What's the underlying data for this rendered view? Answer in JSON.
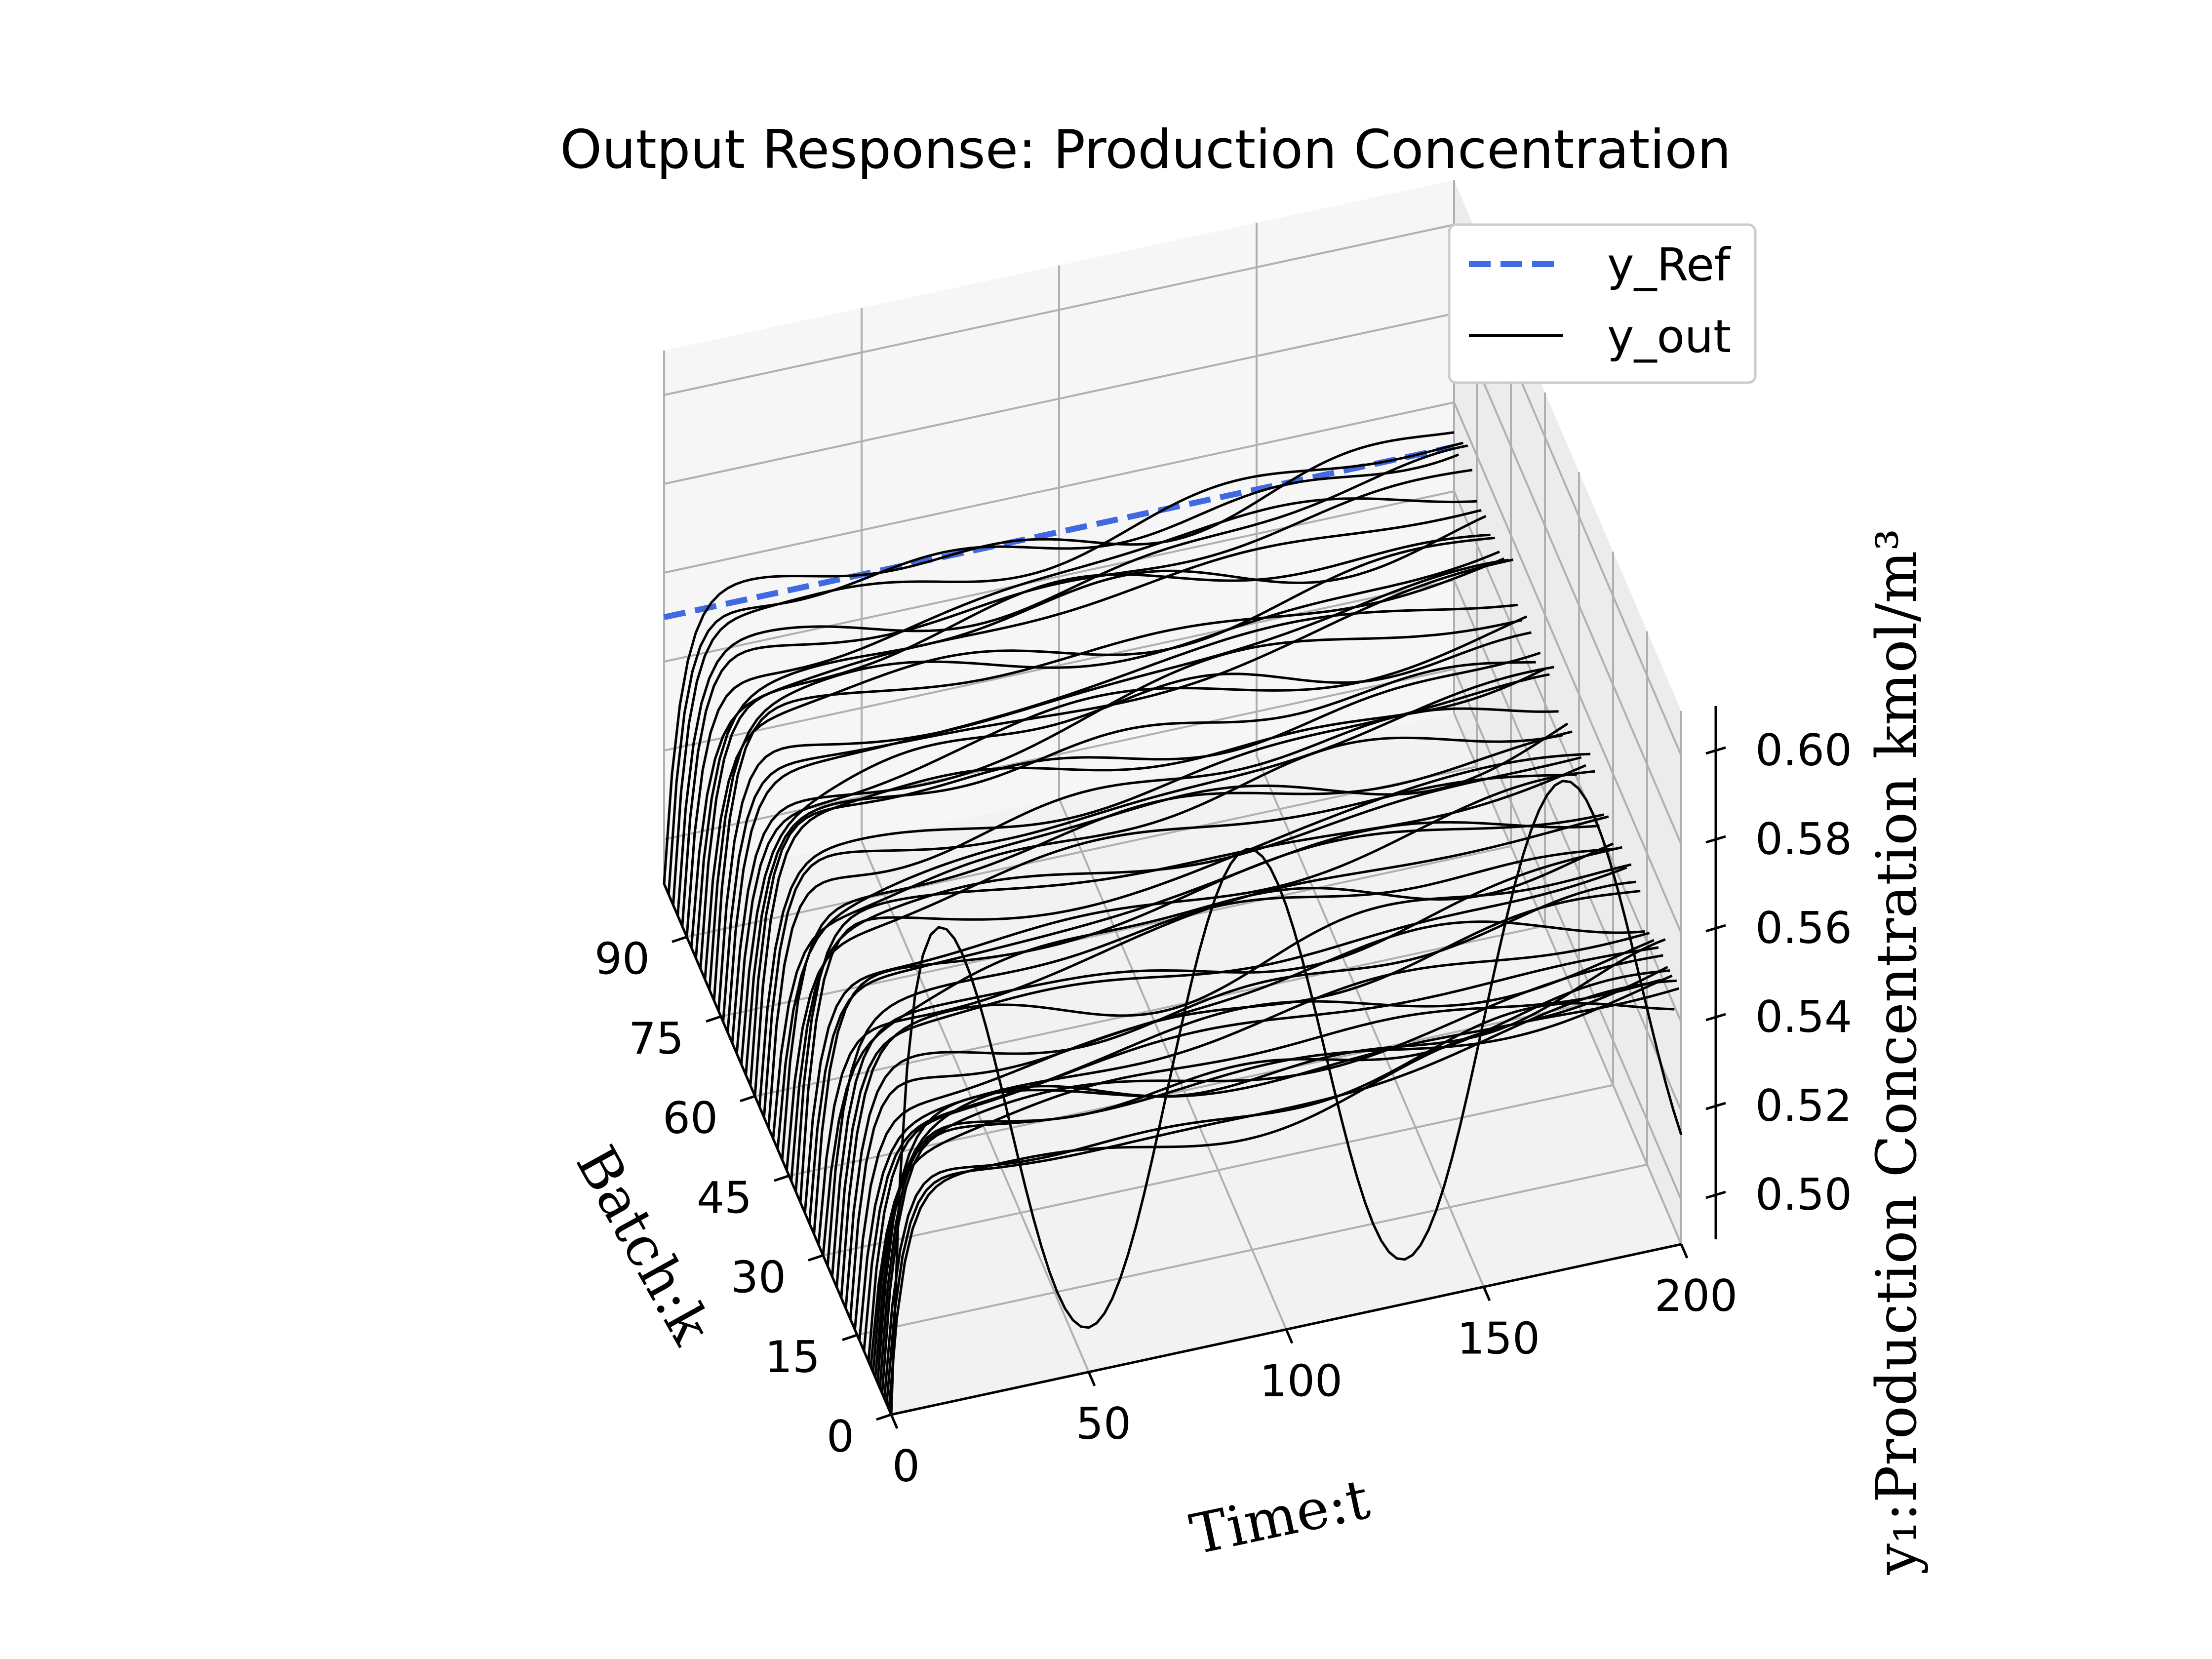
{
  "chart_data": {
    "type": "line",
    "projection": "3d",
    "title": "Output Response: Production Concentration",
    "xlabel": "Time:t",
    "ylabel": "Batch:k",
    "zlabel": "y₁:Production Concentration kmol/m³",
    "x_range": [
      0,
      200
    ],
    "y_range": [
      0,
      100
    ],
    "z_range": [
      0.49,
      0.61
    ],
    "x_ticks": [
      "0",
      "50",
      "100",
      "150",
      "200"
    ],
    "y_ticks": [
      "0",
      "15",
      "30",
      "45",
      "60",
      "75",
      "90"
    ],
    "z_ticks": [
      "0.50",
      "0.52",
      "0.54",
      "0.56",
      "0.58",
      "0.60"
    ],
    "grid": true,
    "legend_position": "top-right",
    "series": [
      {
        "name": "y_Ref",
        "color": "#4169e1",
        "style": "dashed",
        "batch": 100,
        "x": [
          0,
          200
        ],
        "z": [
          0.55,
          0.55
        ]
      },
      {
        "name": "y_out",
        "color": "#000000",
        "style": "solid",
        "description_batches": [
          0,
          1,
          2,
          3,
          4,
          5,
          6,
          7,
          8,
          9,
          10,
          12,
          14,
          16,
          18,
          20,
          22,
          24,
          26,
          28,
          30,
          32,
          34,
          36,
          38,
          40,
          42,
          44,
          46,
          48,
          50,
          52,
          54,
          56,
          58,
          60,
          62,
          64,
          66,
          68,
          70,
          72,
          74,
          76,
          78,
          80,
          82,
          84,
          86,
          88,
          90,
          92,
          94,
          96,
          98,
          100
        ],
        "initial_value": 0.49,
        "settled_value_first_batch": 0.54,
        "settled_value_last_batch": 0.55,
        "oscillating_batch": 0,
        "oscillation_range": [
          0.5,
          0.6
        ]
      }
    ]
  }
}
